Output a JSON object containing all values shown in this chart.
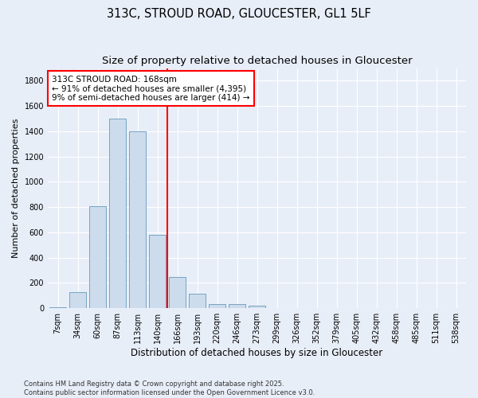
{
  "title1": "313C, STROUD ROAD, GLOUCESTER, GL1 5LF",
  "title2": "Size of property relative to detached houses in Gloucester",
  "xlabel": "Distribution of detached houses by size in Gloucester",
  "ylabel": "Number of detached properties",
  "bin_labels": [
    "7sqm",
    "34sqm",
    "60sqm",
    "87sqm",
    "113sqm",
    "140sqm",
    "166sqm",
    "193sqm",
    "220sqm",
    "246sqm",
    "273sqm",
    "299sqm",
    "326sqm",
    "352sqm",
    "379sqm",
    "405sqm",
    "432sqm",
    "458sqm",
    "485sqm",
    "511sqm",
    "538sqm"
  ],
  "bar_values": [
    10,
    130,
    810,
    1500,
    1400,
    580,
    250,
    115,
    35,
    30,
    20,
    0,
    0,
    0,
    0,
    0,
    0,
    0,
    0,
    0,
    0
  ],
  "bar_color": "#ccdcec",
  "bar_edgecolor": "#6699bb",
  "vline_x_bin": 6,
  "vline_color": "red",
  "annotation_text": "313C STROUD ROAD: 168sqm\n← 91% of detached houses are smaller (4,395)\n9% of semi-detached houses are larger (414) →",
  "annotation_box_color": "white",
  "annotation_box_edgecolor": "red",
  "ylim": [
    0,
    1900
  ],
  "yticks": [
    0,
    200,
    400,
    600,
    800,
    1000,
    1200,
    1400,
    1600,
    1800
  ],
  "background_color": "#e8eef8",
  "grid_color": "white",
  "footer_text": "Contains HM Land Registry data © Crown copyright and database right 2025.\nContains public sector information licensed under the Open Government Licence v3.0.",
  "title1_fontsize": 10.5,
  "title2_fontsize": 9.5,
  "xlabel_fontsize": 8.5,
  "ylabel_fontsize": 8,
  "tick_fontsize": 7,
  "annotation_fontsize": 7.5,
  "footer_fontsize": 6
}
